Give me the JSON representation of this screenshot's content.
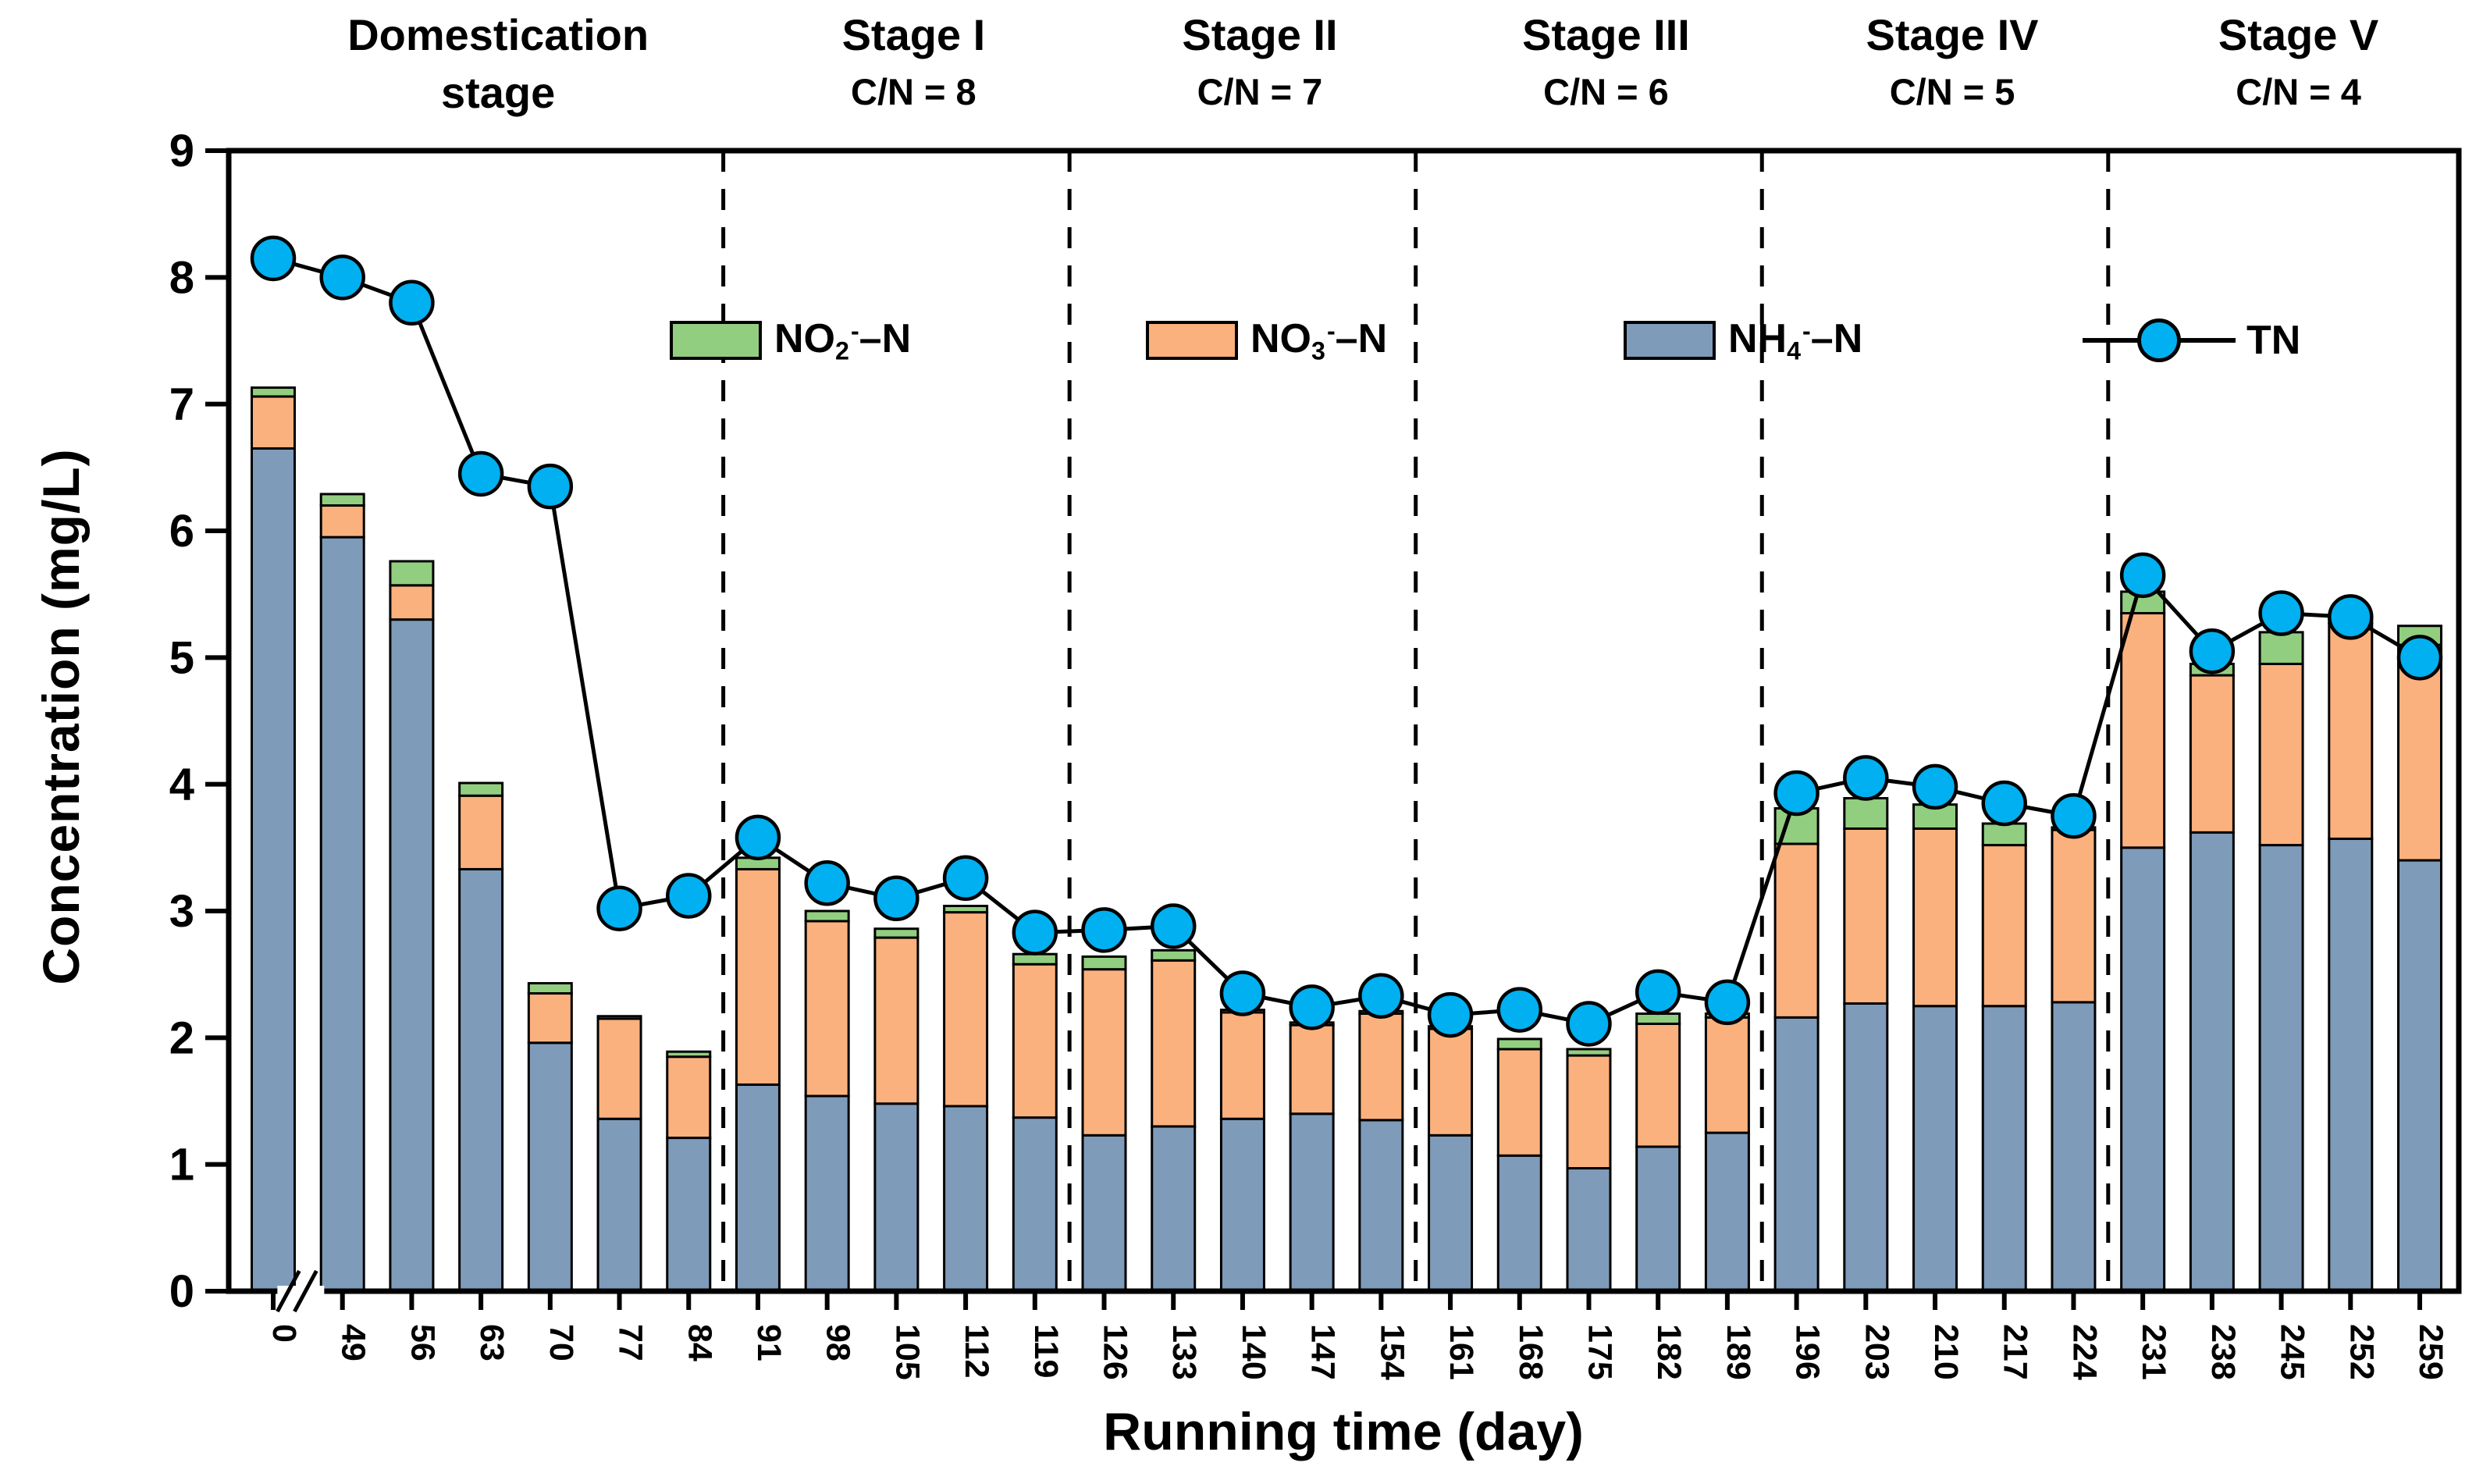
{
  "figure": {
    "ylabel": "Concentration (mg/L)",
    "xlabel": "Running time (day)"
  },
  "legend": {
    "items": [
      {
        "kind": "swatch",
        "series": "no2",
        "pre": "NO",
        "sub": "2",
        "sup": "-",
        "post": "–N"
      },
      {
        "kind": "swatch",
        "series": "no3",
        "pre": "NO",
        "sub": "3",
        "sup": "-",
        "post": "–N"
      },
      {
        "kind": "swatch",
        "series": "nh4",
        "pre": "NH",
        "sub": "4",
        "sup": "-",
        "post": "–N"
      },
      {
        "kind": "marker",
        "label": "TN"
      }
    ]
  },
  "chart_data": {
    "type": "bar",
    "subtype": "stacked-bars-with-line",
    "title": "",
    "xlabel": "Running time (day)",
    "ylabel": "Concentration (mg/L)",
    "ylim": [
      0,
      9
    ],
    "ytick_step": 1,
    "grid": false,
    "axis_break_after_first_category": true,
    "categories": [
      "0",
      "49",
      "56",
      "63",
      "70",
      "77",
      "84",
      "91",
      "98",
      "105",
      "112",
      "119",
      "126",
      "133",
      "140",
      "147",
      "154",
      "161",
      "168",
      "175",
      "182",
      "189",
      "196",
      "203",
      "210",
      "217",
      "224",
      "231",
      "238",
      "245",
      "252",
      "259"
    ],
    "series": [
      {
        "name": "NH4--N",
        "key": "nh4",
        "stack_order": 1,
        "values": [
          6.65,
          5.95,
          5.3,
          3.33,
          1.96,
          1.36,
          1.21,
          1.63,
          1.54,
          1.48,
          1.46,
          1.37,
          1.23,
          1.3,
          1.36,
          1.4,
          1.35,
          1.23,
          1.07,
          0.97,
          1.14,
          1.25,
          2.16,
          2.27,
          2.25,
          2.25,
          2.28,
          3.5,
          3.62,
          3.52,
          3.57,
          3.4
        ]
      },
      {
        "name": "NO3--N",
        "key": "no3",
        "stack_order": 2,
        "values": [
          0.41,
          0.25,
          0.27,
          0.58,
          0.39,
          0.79,
          0.64,
          1.7,
          1.38,
          1.31,
          1.53,
          1.21,
          1.31,
          1.31,
          0.84,
          0.7,
          0.84,
          0.84,
          0.84,
          0.89,
          0.97,
          0.91,
          1.37,
          1.38,
          1.4,
          1.27,
          1.36,
          1.85,
          1.24,
          1.43,
          1.7,
          1.7
        ]
      },
      {
        "name": "NO2--N",
        "key": "no2",
        "stack_order": 3,
        "values": [
          0.07,
          0.09,
          0.19,
          0.1,
          0.08,
          0.02,
          0.04,
          0.09,
          0.08,
          0.07,
          0.05,
          0.08,
          0.1,
          0.08,
          0.02,
          0.02,
          0.02,
          0.02,
          0.08,
          0.05,
          0.08,
          0.03,
          0.28,
          0.24,
          0.19,
          0.17,
          0.02,
          0.17,
          0.09,
          0.25,
          0.03,
          0.15
        ]
      }
    ],
    "line_series": {
      "name": "TN",
      "key": "tn",
      "values": [
        8.15,
        8.0,
        7.8,
        6.45,
        6.35,
        3.02,
        3.12,
        3.58,
        3.22,
        3.1,
        3.26,
        2.83,
        2.85,
        2.88,
        2.35,
        2.24,
        2.33,
        2.18,
        2.22,
        2.11,
        2.36,
        2.28,
        3.93,
        4.05,
        3.98,
        3.85,
        3.75,
        5.65,
        5.05,
        5.35,
        5.32,
        5.0
      ]
    },
    "stages": [
      {
        "title_lines": [
          "Domestication",
          "stage"
        ],
        "cn": "",
        "from": 0,
        "to": 6
      },
      {
        "title_lines": [
          "Stage I"
        ],
        "cn": "C/N = 8",
        "from": 7,
        "to": 11
      },
      {
        "title_lines": [
          "Stage II"
        ],
        "cn": "C/N = 7",
        "from": 12,
        "to": 16
      },
      {
        "title_lines": [
          "Stage III"
        ],
        "cn": "C/N = 6",
        "from": 17,
        "to": 21
      },
      {
        "title_lines": [
          "Stage IV"
        ],
        "cn": "C/N = 5",
        "from": 22,
        "to": 26
      },
      {
        "title_lines": [
          "Stage V"
        ],
        "cn": "C/N = 4",
        "from": 27,
        "to": 31
      }
    ],
    "colors": {
      "nh4": "#7f9bba",
      "no3": "#fbb17d",
      "no2": "#92ce80",
      "tn": "#00b0f0",
      "line": "#000000",
      "axis": "#000000"
    },
    "legend_position": "inside-top"
  }
}
